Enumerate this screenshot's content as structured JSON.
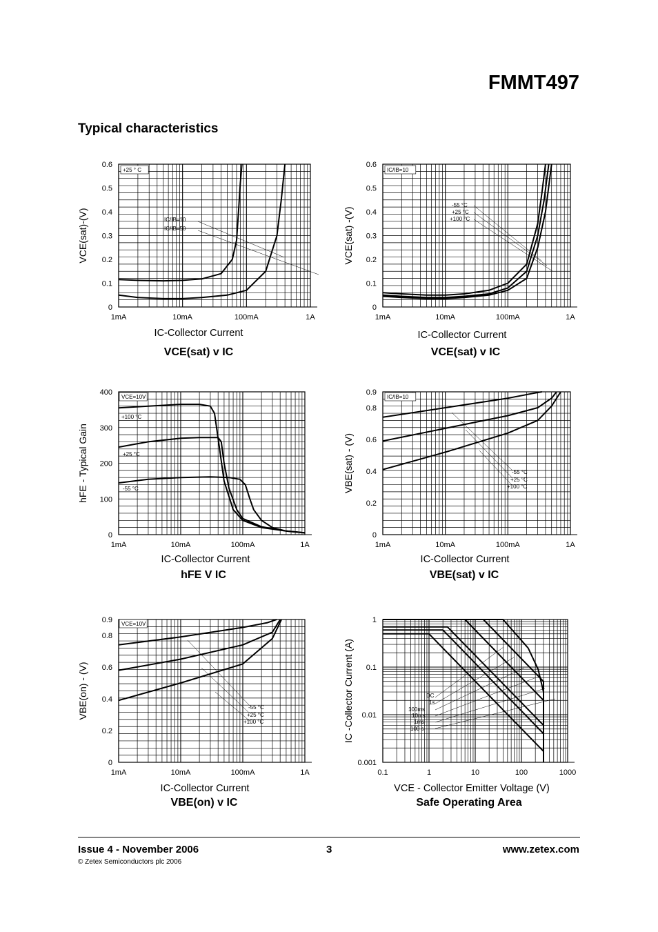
{
  "doc_title": "FMMT497",
  "section_title": "Typical characteristics",
  "footer": {
    "issue": "Issue 4 - November 2006",
    "page": "3",
    "url": "www.zetex.com",
    "copyright": "© Zetex Semiconductors plc 2006"
  },
  "chart_data": [
    {
      "id": "vcesat1",
      "type": "line",
      "title": "VCE(sat) v IC",
      "xlabel": "IC-Collector Current",
      "ylabel": "VCE(sat)-(V)",
      "xscale": "log",
      "xlim": [
        0.001,
        1
      ],
      "xticks": [
        0.001,
        0.01,
        0.1,
        1
      ],
      "xticklabels": [
        "1mA",
        "10mA",
        "100mA",
        "1A"
      ],
      "ylim": [
        0,
        0.6
      ],
      "yticks": [
        0,
        0.1,
        0.2,
        0.3,
        0.4,
        0.5,
        0.6
      ],
      "yticklabels": [
        "0",
        "0.1",
        "0.2",
        "0.3",
        "0.4",
        "0.5",
        "0.6"
      ],
      "grid": true,
      "annotations": [
        {
          "text": "+25 ° C",
          "box": true,
          "side": "left"
        },
        {
          "text": "IC/IB=10",
          "side": "mid"
        },
        {
          "text": "IC/IB=50",
          "side": "mid"
        }
      ],
      "series": [
        {
          "x": [
            0.001,
            0.002,
            0.005,
            0.01,
            0.02,
            0.04,
            0.06,
            0.07,
            0.075,
            0.08,
            0.085
          ],
          "y": [
            0.115,
            0.112,
            0.11,
            0.112,
            0.118,
            0.14,
            0.2,
            0.28,
            0.4,
            0.52,
            0.6
          ]
        },
        {
          "x": [
            0.001,
            0.002,
            0.005,
            0.01,
            0.02,
            0.05,
            0.1,
            0.2,
            0.3,
            0.35,
            0.4
          ],
          "y": [
            0.05,
            0.04,
            0.035,
            0.035,
            0.04,
            0.05,
            0.07,
            0.15,
            0.3,
            0.45,
            0.6
          ]
        }
      ]
    },
    {
      "id": "vcesat2",
      "type": "line",
      "title": "VCE(sat) v IC",
      "xlabel": "IC-Collector Current",
      "ylabel": "VCE(sat) -(V)",
      "xscale": "log",
      "xlim": [
        0.001,
        1
      ],
      "xticks": [
        0.001,
        0.01,
        0.1,
        1
      ],
      "xticklabels": [
        "1mA",
        "10mA",
        "100mA",
        "1A"
      ],
      "ylim": [
        0,
        0.6
      ],
      "yticks": [
        0,
        0.1,
        0.2,
        0.3,
        0.4,
        0.5,
        0.6
      ],
      "yticklabels": [
        "0",
        "0.1",
        "0.2",
        "0.3",
        "0.4",
        "0.5",
        "0.6"
      ],
      "grid": true,
      "annotations": [
        {
          "text": "IC/IB=10",
          "box": true,
          "side": "left"
        },
        {
          "text": "-55 °C"
        },
        {
          "text": "+25 °C"
        },
        {
          "text": "+100 °C"
        }
      ],
      "series": [
        {
          "x": [
            0.001,
            0.002,
            0.005,
            0.01,
            0.02,
            0.05,
            0.1,
            0.2,
            0.3,
            0.35,
            0.4
          ],
          "y": [
            0.06,
            0.055,
            0.05,
            0.05,
            0.055,
            0.07,
            0.1,
            0.18,
            0.35,
            0.48,
            0.6
          ]
        },
        {
          "x": [
            0.001,
            0.002,
            0.005,
            0.01,
            0.02,
            0.05,
            0.1,
            0.2,
            0.3,
            0.38,
            0.45
          ],
          "y": [
            0.05,
            0.045,
            0.04,
            0.04,
            0.045,
            0.055,
            0.08,
            0.15,
            0.3,
            0.45,
            0.6
          ]
        },
        {
          "x": [
            0.001,
            0.002,
            0.005,
            0.01,
            0.02,
            0.05,
            0.1,
            0.2,
            0.3,
            0.4,
            0.5
          ],
          "y": [
            0.045,
            0.04,
            0.035,
            0.035,
            0.04,
            0.05,
            0.07,
            0.12,
            0.25,
            0.4,
            0.6
          ]
        }
      ]
    },
    {
      "id": "hfe",
      "type": "line",
      "title": "hFE V IC",
      "xlabel": "IC-Collector Current",
      "ylabel": "hFE - Typical Gain",
      "xscale": "log",
      "xlim": [
        0.001,
        1
      ],
      "xticks": [
        0.001,
        0.01,
        0.1,
        1
      ],
      "xticklabels": [
        "1mA",
        "10mA",
        "100mA",
        "1A"
      ],
      "ylim": [
        0,
        400
      ],
      "yticks": [
        0,
        100,
        200,
        300,
        400
      ],
      "yticklabels": [
        "0",
        "100",
        "200",
        "300",
        "400"
      ],
      "grid": true,
      "annotations": [
        {
          "text": "VCE=10V",
          "box": true
        },
        {
          "text": "+100 °C"
        },
        {
          "text": "+25 °C"
        },
        {
          "text": "-55 °C"
        }
      ],
      "series": [
        {
          "name": "+100 °C",
          "x": [
            0.001,
            0.003,
            0.01,
            0.02,
            0.03,
            0.035,
            0.04,
            0.05,
            0.07,
            0.1,
            0.2,
            0.5,
            1
          ],
          "y": [
            355,
            360,
            365,
            365,
            360,
            340,
            270,
            150,
            70,
            40,
            20,
            10,
            5
          ]
        },
        {
          "name": "+25 °C",
          "x": [
            0.001,
            0.003,
            0.01,
            0.02,
            0.04,
            0.045,
            0.05,
            0.06,
            0.08,
            0.1,
            0.2,
            0.5,
            1
          ],
          "y": [
            245,
            260,
            270,
            272,
            272,
            260,
            200,
            130,
            70,
            45,
            22,
            10,
            5
          ]
        },
        {
          "name": "-55 °C",
          "x": [
            0.001,
            0.003,
            0.01,
            0.03,
            0.06,
            0.09,
            0.11,
            0.13,
            0.15,
            0.2,
            0.3,
            0.5,
            1
          ],
          "y": [
            145,
            155,
            160,
            162,
            160,
            155,
            140,
            100,
            70,
            40,
            20,
            10,
            5
          ]
        }
      ]
    },
    {
      "id": "vbesat",
      "type": "line",
      "title": "VBE(sat) v IC",
      "xlabel": "IC-Collector Current",
      "ylabel": "VBE(sat) - (V)",
      "xscale": "log",
      "xlim": [
        0.001,
        1
      ],
      "xticks": [
        0.001,
        0.01,
        0.1,
        1
      ],
      "xticklabels": [
        "1mA",
        "10mA",
        "100mA",
        "1A"
      ],
      "ylim": [
        0,
        0.9
      ],
      "yticks": [
        0,
        0.2,
        0.4,
        0.6,
        0.8,
        0.9
      ],
      "yticklabels": [
        "0",
        "0.2",
        "0.4",
        "0.6",
        "0.8",
        "0.9"
      ],
      "grid": true,
      "annotations": [
        {
          "text": "IC/IB=10",
          "box": true
        },
        {
          "text": "-55 °C"
        },
        {
          "text": "+25 °C"
        },
        {
          "text": "+100 °C"
        }
      ],
      "series": [
        {
          "name": "-55 °C",
          "x": [
            0.001,
            0.01,
            0.1,
            0.25,
            0.35
          ],
          "y": [
            0.74,
            0.8,
            0.86,
            0.89,
            0.9
          ]
        },
        {
          "name": "+25 °C",
          "x": [
            0.001,
            0.01,
            0.1,
            0.3,
            0.5,
            0.6
          ],
          "y": [
            0.59,
            0.67,
            0.75,
            0.8,
            0.86,
            0.9
          ]
        },
        {
          "name": "+100 °C",
          "x": [
            0.001,
            0.01,
            0.1,
            0.3,
            0.5,
            0.7
          ],
          "y": [
            0.41,
            0.52,
            0.64,
            0.72,
            0.81,
            0.9
          ]
        }
      ]
    },
    {
      "id": "vbeon",
      "type": "line",
      "title": "VBE(on) v IC",
      "xlabel": "IC-Collector Current",
      "ylabel": "VBE(on) - (V)",
      "xscale": "log",
      "xlim": [
        0.001,
        1
      ],
      "xticks": [
        0.001,
        0.01,
        0.1,
        1
      ],
      "xticklabels": [
        "1mA",
        "10mA",
        "100mA",
        "1A"
      ],
      "ylim": [
        0,
        0.9
      ],
      "yticks": [
        0,
        0.2,
        0.4,
        0.6,
        0.8,
        0.9
      ],
      "yticklabels": [
        "0",
        "0.2",
        "0.4",
        "0.6",
        "0.8",
        "0.9"
      ],
      "grid": true,
      "annotations": [
        {
          "text": "VCE=10V",
          "box": true
        },
        {
          "text": "-55 °C"
        },
        {
          "text": "+25 °C"
        },
        {
          "text": "+100 °C"
        }
      ],
      "series": [
        {
          "name": "-55 °C",
          "x": [
            0.001,
            0.01,
            0.1,
            0.25,
            0.35
          ],
          "y": [
            0.74,
            0.79,
            0.85,
            0.88,
            0.9
          ]
        },
        {
          "name": "+25 °C",
          "x": [
            0.001,
            0.01,
            0.1,
            0.3,
            0.4
          ],
          "y": [
            0.58,
            0.65,
            0.74,
            0.82,
            0.9
          ]
        },
        {
          "name": "+100 °C",
          "x": [
            0.001,
            0.01,
            0.1,
            0.3,
            0.42
          ],
          "y": [
            0.39,
            0.5,
            0.62,
            0.78,
            0.9
          ]
        }
      ]
    },
    {
      "id": "soa",
      "type": "line",
      "title": "Safe Operating Area",
      "xlabel": "VCE - Collector Emitter Voltage (V)",
      "ylabel": "IC -Collector Current (A)",
      "xscale": "log",
      "yscale": "log",
      "xlim": [
        0.1,
        1000
      ],
      "ylim": [
        0.001,
        1
      ],
      "xticks": [
        0.1,
        1,
        10,
        100,
        1000
      ],
      "xticklabels": [
        "0.1",
        "1",
        "10",
        "100",
        "1000"
      ],
      "yticks": [
        0.001,
        0.01,
        0.1,
        1
      ],
      "yticklabels": [
        "0.001",
        "0.01",
        "0.1",
        "1"
      ],
      "grid": true,
      "annotations": [
        {
          "text": "DC"
        },
        {
          "text": "1s"
        },
        {
          "text": "100ms"
        },
        {
          "text": "10ms"
        },
        {
          "text": "1ms"
        },
        {
          "text": "100 s"
        }
      ],
      "series": [
        {
          "name": "DC",
          "x": [
            0.1,
            1.0,
            300,
            300
          ],
          "y": [
            0.5,
            0.5,
            0.0017,
            0.001
          ]
        },
        {
          "name": "1s",
          "x": [
            0.1,
            2.0,
            300,
            300
          ],
          "y": [
            0.6,
            0.6,
            0.004,
            0.001
          ]
        },
        {
          "name": "100ms",
          "x": [
            0.1,
            2.5,
            300,
            300
          ],
          "y": [
            0.7,
            0.7,
            0.006,
            0.001
          ]
        },
        {
          "name": "10ms",
          "x": [
            0.1,
            6.0,
            300,
            300
          ],
          "y": [
            1,
            1,
            0.02,
            0.001
          ]
        },
        {
          "name": "1ms",
          "x": [
            0.1,
            15,
            300,
            300
          ],
          "y": [
            1,
            1,
            0.05,
            0.001
          ]
        },
        {
          "name": "100 s",
          "x": [
            0.1,
            40,
            140,
            230,
            300,
            300
          ],
          "y": [
            1,
            1,
            0.25,
            0.09,
            0.03,
            0.001
          ]
        }
      ]
    }
  ]
}
